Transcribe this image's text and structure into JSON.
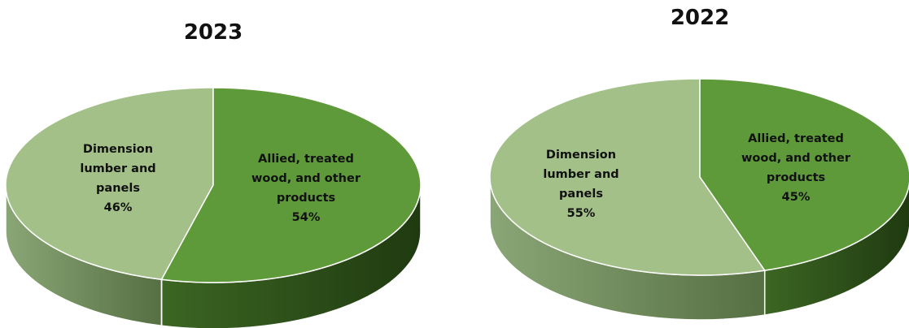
{
  "chart_data": [
    {
      "type": "pie",
      "title": "2023",
      "slices": [
        {
          "label_lines": [
            "Dimension",
            "lumber and",
            "panels",
            "46%"
          ],
          "value": 46,
          "color": "#a3c089"
        },
        {
          "label_lines": [
            "Allied, treated",
            "wood, and other",
            "products",
            "54%"
          ],
          "value": 54,
          "color": "#5f9a3a"
        }
      ]
    },
    {
      "type": "pie",
      "title": "2022",
      "slices": [
        {
          "label_lines": [
            "Dimension",
            "lumber and",
            "panels",
            "55%"
          ],
          "value": 55,
          "color": "#a3c089"
        },
        {
          "label_lines": [
            "Allied, treated",
            "wood, and other",
            "products",
            "45%"
          ],
          "value": 45,
          "color": "#5f9a3a"
        }
      ]
    }
  ]
}
